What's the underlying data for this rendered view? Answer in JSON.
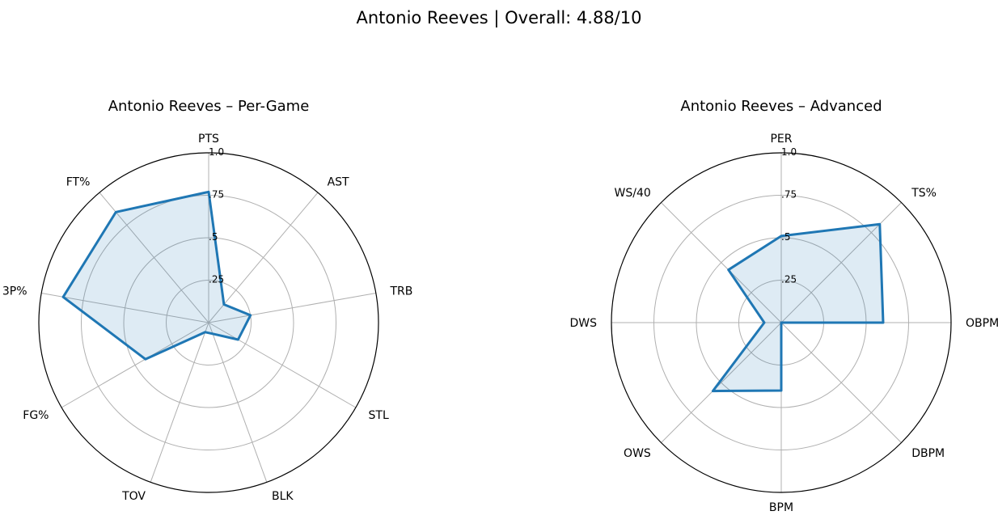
{
  "suptitle": "Antonio Reeves | Overall: 4.88/10",
  "chart_data": [
    {
      "type": "radar",
      "title": "Antonio Reeves – Per-Game",
      "categories": [
        "PTS",
        "AST",
        "TRB",
        "STL",
        "BLK",
        "TOV",
        "FG%",
        "3P%",
        "FT%"
      ],
      "values": [
        0.77,
        0.14,
        0.25,
        0.2,
        0.07,
        0.06,
        0.43,
        0.87,
        0.85
      ],
      "rlim": [
        0,
        1.0
      ],
      "rticks": [
        ".25",
        ".5",
        ".75",
        "1.0"
      ],
      "grid": true,
      "color": "#1f77b4",
      "fill_color": "#1f77b4"
    },
    {
      "type": "radar",
      "title": "Antonio Reeves – Advanced",
      "categories": [
        "PER",
        "TS%",
        "OBPM",
        "DBPM",
        "BPM",
        "OWS",
        "DWS",
        "WS/40"
      ],
      "values": [
        0.51,
        0.82,
        0.6,
        0.0,
        0.4,
        0.57,
        0.1,
        0.44
      ],
      "rlim": [
        0,
        1.0
      ],
      "rticks": [
        ".25",
        ".5",
        ".75",
        "1.0"
      ],
      "grid": true,
      "color": "#1f77b4",
      "fill_color": "#1f77b4"
    }
  ]
}
